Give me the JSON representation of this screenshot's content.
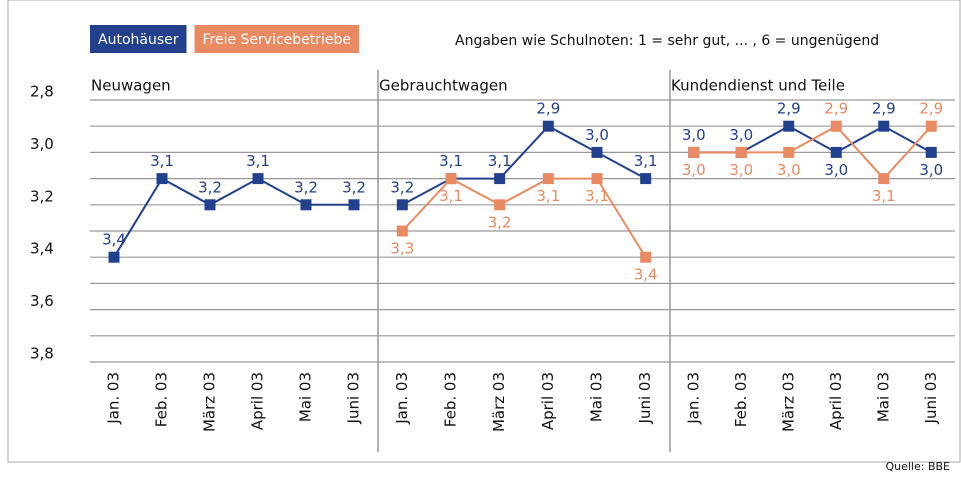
{
  "chart_data": {
    "type": "line",
    "note": "Angaben wie Schulnoten: 1 = sehr gut, ... , 6 = ungenügend",
    "source": "Quelle: BBE",
    "inverted": true,
    "ylim": [
      2.8,
      3.8
    ],
    "yticks": [
      {
        "value": 2.8,
        "label": "2,8"
      },
      {
        "value": 3.0,
        "label": "3,0"
      },
      {
        "value": 3.2,
        "label": "3,2"
      },
      {
        "value": 3.4,
        "label": "3,4"
      },
      {
        "value": 3.6,
        "label": "3,6"
      },
      {
        "value": 3.8,
        "label": "3,8"
      }
    ],
    "minor_grid": [
      2.9,
      3.1,
      3.3,
      3.5,
      3.7
    ],
    "grid": true,
    "panels": [
      {
        "title": "Neuwagen",
        "categories": [
          "Jan. 03",
          "Feb. 03",
          "März 03",
          "April 03",
          "Mai 03",
          "Juni 03"
        ],
        "series": [
          {
            "name": "Autohäuser",
            "color": "#23408e",
            "values": [
              3.4,
              3.1,
              3.2,
              3.1,
              3.2,
              3.2
            ],
            "value_labels": [
              "3,4",
              "3,1",
              "3,2",
              "3,1",
              "3,2",
              "3,2"
            ]
          }
        ]
      },
      {
        "title": "Gebrauchtwagen",
        "categories": [
          "Jan. 03",
          "Feb. 03",
          "März 03",
          "April 03",
          "Mai 03",
          "Juni 03"
        ],
        "series": [
          {
            "name": "Autohäuser",
            "color": "#23408e",
            "values": [
              3.2,
              3.1,
              3.1,
              2.9,
              3.0,
              3.1
            ],
            "value_labels": [
              "3,2",
              "3,1",
              "3,1",
              "2,9",
              "3,0",
              "3,1"
            ]
          },
          {
            "name": "Freie Servicebetriebe",
            "color": "#ea8a62",
            "values": [
              3.3,
              3.1,
              3.2,
              3.1,
              3.1,
              3.4
            ],
            "value_labels": [
              "3,3",
              "3,1",
              "3,2",
              "3,1",
              "3,1",
              "3,4"
            ]
          }
        ]
      },
      {
        "title": "Kundendienst und Teile",
        "categories": [
          "Jan. 03",
          "Feb. 03",
          "März 03",
          "April 03",
          "Mai 03",
          "Juni 03"
        ],
        "series": [
          {
            "name": "Autohäuser",
            "color": "#23408e",
            "values": [
              3.0,
              3.0,
              2.9,
              3.0,
              2.9,
              3.0
            ],
            "value_labels": [
              "3,0",
              "3,0",
              "2,9",
              "3,0",
              "2,9",
              "3,0"
            ]
          },
          {
            "name": "Freie Servicebetriebe",
            "color": "#ea8a62",
            "values": [
              3.0,
              3.0,
              3.0,
              2.9,
              3.1,
              2.9
            ],
            "value_labels": [
              "3,0",
              "3,0",
              "3,0",
              "2,9",
              "3,1",
              "2,9"
            ]
          }
        ]
      }
    ]
  }
}
